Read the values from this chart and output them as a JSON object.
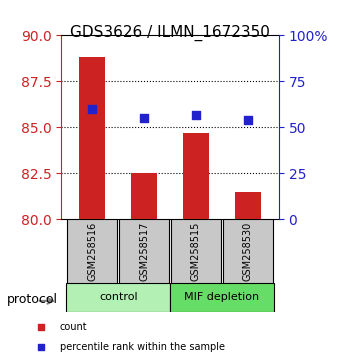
{
  "title": "GDS3626 / ILMN_1672350",
  "samples": [
    "GSM258516",
    "GSM258517",
    "GSM258515",
    "GSM258530"
  ],
  "bar_values": [
    88.8,
    82.5,
    84.7,
    81.5
  ],
  "percentile_values": [
    60.0,
    55.0,
    57.0,
    54.0
  ],
  "bar_color": "#cc2222",
  "dot_color": "#2222cc",
  "ylim_left": [
    80,
    90
  ],
  "ylim_right": [
    0,
    100
  ],
  "yticks_left": [
    80,
    82.5,
    85,
    87.5,
    90
  ],
  "yticks_right": [
    0,
    25,
    50,
    75,
    100
  ],
  "yticklabels_right": [
    "0",
    "25",
    "50",
    "75",
    "100%"
  ],
  "groups": [
    {
      "label": "control",
      "indices": [
        0,
        1
      ],
      "color": "#b3f0b3"
    },
    {
      "label": "MIF depletion",
      "indices": [
        2,
        3
      ],
      "color": "#66dd66"
    }
  ],
  "group_label": "protocol",
  "legend_items": [
    {
      "label": "count",
      "color": "#cc2222",
      "marker": "s"
    },
    {
      "label": "percentile rank within the sample",
      "color": "#2222cc",
      "marker": "s"
    }
  ],
  "bar_width": 0.5,
  "title_fontsize": 11,
  "axis_label_color_left": "#cc2222",
  "axis_label_color_right": "#2222cc",
  "tick_area_color": "#c8c8c8",
  "dotted_line_color": "#555555"
}
